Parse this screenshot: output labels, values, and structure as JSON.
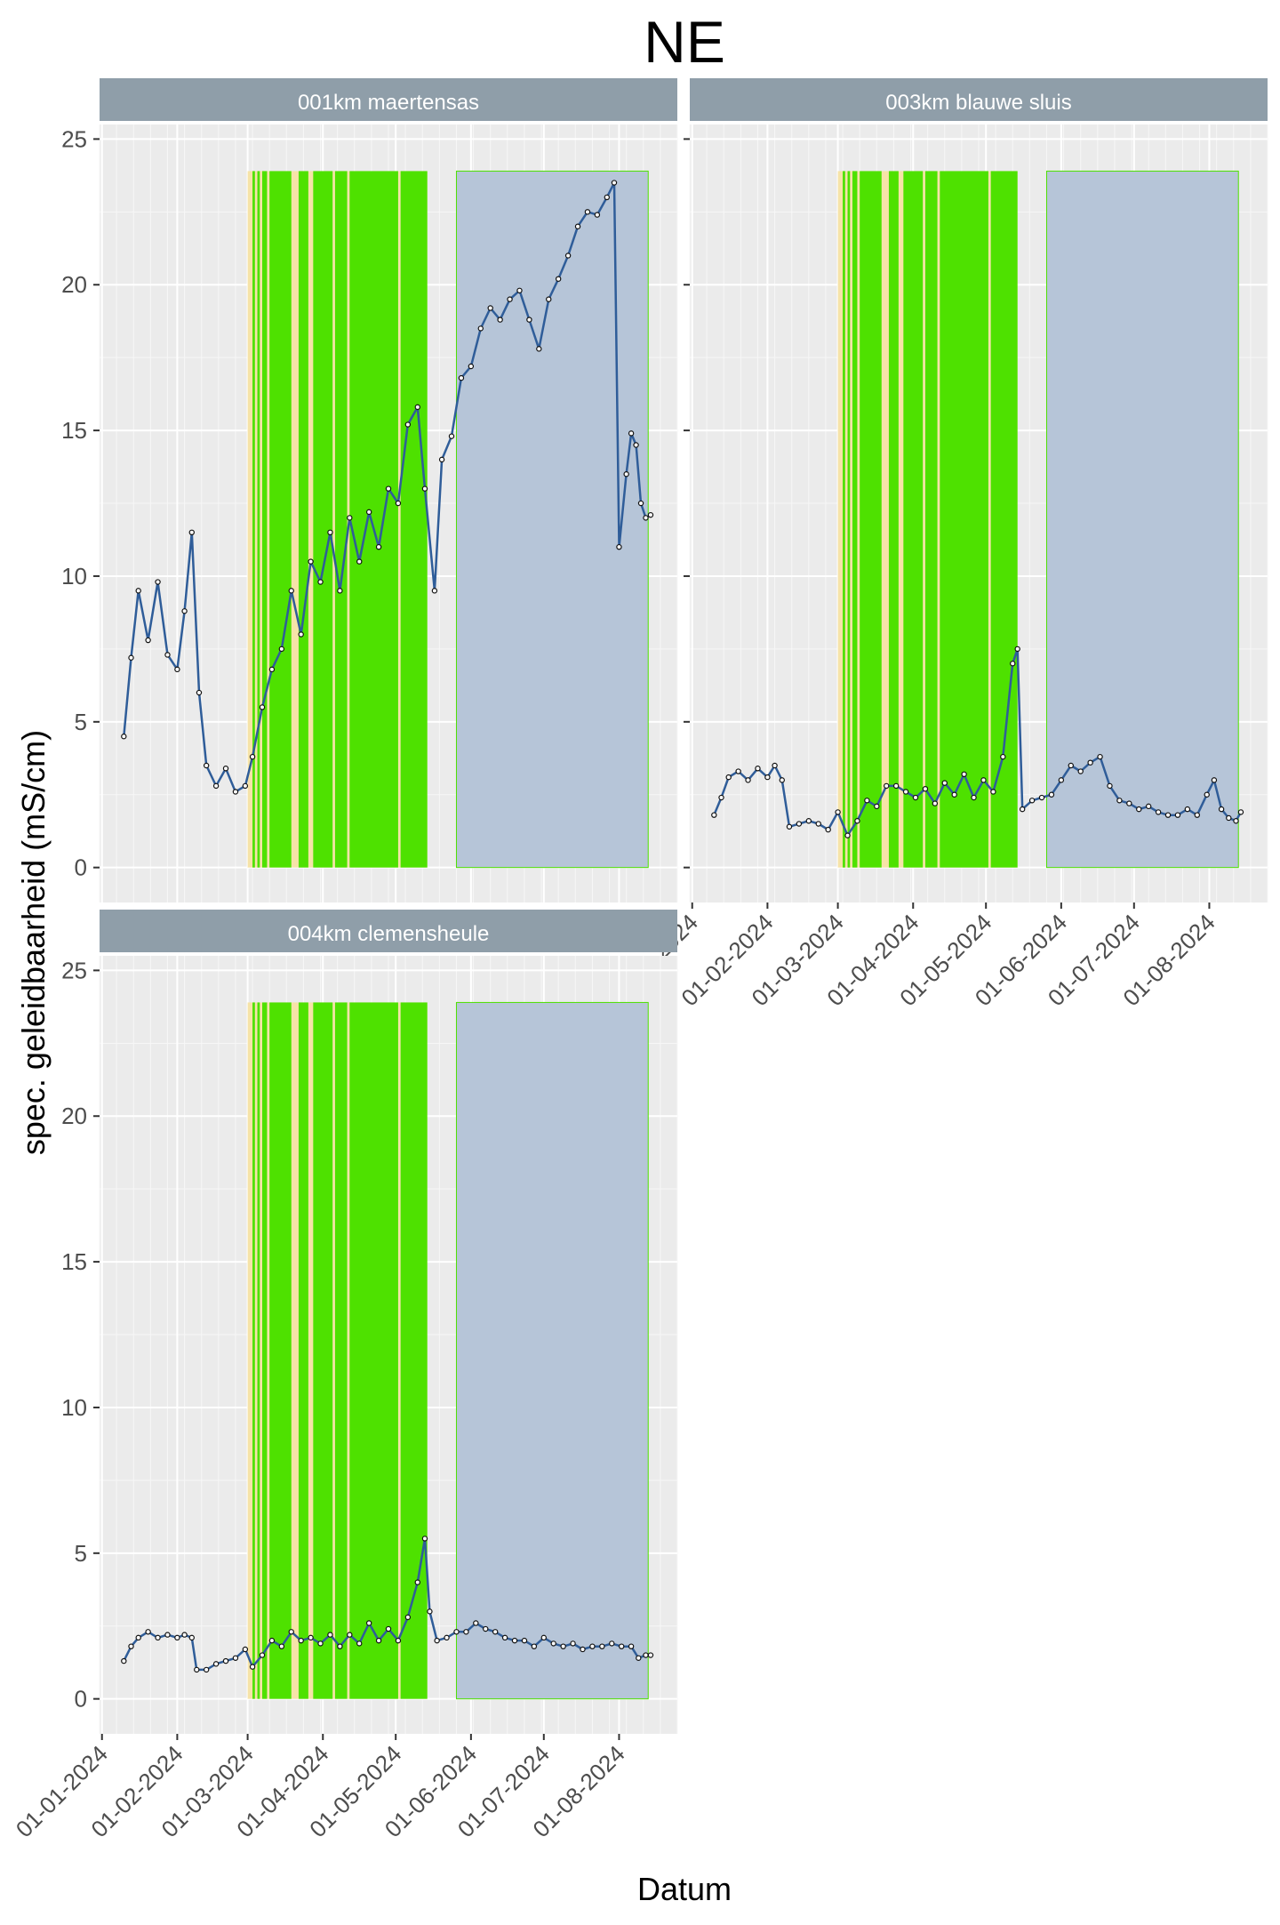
{
  "chart_data": {
    "type": "line",
    "title": "NE",
    "xlabel": "Datum",
    "ylabel": "spec. geleidbaarheid (mS/cm)",
    "ylim": [
      -1.2,
      25.5
    ],
    "yticks": [
      0,
      5,
      10,
      15,
      20,
      25
    ],
    "xlim": [
      "2023-12-31",
      "2024-08-25"
    ],
    "xticks": [
      "01-01-2024",
      "01-02-2024",
      "01-03-2024",
      "01-04-2024",
      "01-05-2024",
      "01-06-2024",
      "01-07-2024",
      "01-08-2024"
    ],
    "grid": true,
    "colors": {
      "line": "#2f5d99",
      "shaded_green": "#4ee100",
      "shaded_yellow": "#f6e3a8",
      "shaded_blue": "#b6c5d8",
      "strip": "#8f9ea9",
      "panel": "#ebebeb"
    },
    "shaded_periods": {
      "yellow_band": [
        "2024-03-01",
        "2024-05-14"
      ],
      "green_bands": [
        [
          "2024-03-03",
          "2024-03-04"
        ],
        [
          "2024-03-05",
          "2024-03-06"
        ],
        [
          "2024-03-07",
          "2024-03-09"
        ],
        [
          "2024-03-10",
          "2024-03-19"
        ],
        [
          "2024-03-22",
          "2024-03-26"
        ],
        [
          "2024-03-28",
          "2024-04-05"
        ],
        [
          "2024-04-06",
          "2024-04-11"
        ],
        [
          "2024-04-12",
          "2024-05-02"
        ],
        [
          "2024-05-03",
          "2024-05-14"
        ]
      ],
      "blue_band": [
        "2024-05-26",
        "2024-08-13"
      ],
      "top": 23.9
    },
    "panels": [
      {
        "name": "001km maertensas",
        "series": [
          {
            "x": "2024-01-10",
            "y": 4.5
          },
          {
            "x": "2024-01-13",
            "y": 7.2
          },
          {
            "x": "2024-01-16",
            "y": 9.5
          },
          {
            "x": "2024-01-20",
            "y": 7.8
          },
          {
            "x": "2024-01-24",
            "y": 9.8
          },
          {
            "x": "2024-01-28",
            "y": 7.3
          },
          {
            "x": "2024-02-01",
            "y": 6.8
          },
          {
            "x": "2024-02-04",
            "y": 8.8
          },
          {
            "x": "2024-02-07",
            "y": 11.5
          },
          {
            "x": "2024-02-10",
            "y": 6.0
          },
          {
            "x": "2024-02-13",
            "y": 3.5
          },
          {
            "x": "2024-02-17",
            "y": 2.8
          },
          {
            "x": "2024-02-21",
            "y": 3.4
          },
          {
            "x": "2024-02-25",
            "y": 2.6
          },
          {
            "x": "2024-02-29",
            "y": 2.8
          },
          {
            "x": "2024-03-03",
            "y": 3.8
          },
          {
            "x": "2024-03-07",
            "y": 5.5
          },
          {
            "x": "2024-03-11",
            "y": 6.8
          },
          {
            "x": "2024-03-15",
            "y": 7.5
          },
          {
            "x": "2024-03-19",
            "y": 9.5
          },
          {
            "x": "2024-03-23",
            "y": 8.0
          },
          {
            "x": "2024-03-27",
            "y": 10.5
          },
          {
            "x": "2024-03-31",
            "y": 9.8
          },
          {
            "x": "2024-04-04",
            "y": 11.5
          },
          {
            "x": "2024-04-08",
            "y": 9.5
          },
          {
            "x": "2024-04-12",
            "y": 12.0
          },
          {
            "x": "2024-04-16",
            "y": 10.5
          },
          {
            "x": "2024-04-20",
            "y": 12.2
          },
          {
            "x": "2024-04-24",
            "y": 11.0
          },
          {
            "x": "2024-04-28",
            "y": 13.0
          },
          {
            "x": "2024-05-02",
            "y": 12.5
          },
          {
            "x": "2024-05-06",
            "y": 15.2
          },
          {
            "x": "2024-05-10",
            "y": 15.8
          },
          {
            "x": "2024-05-13",
            "y": 13.0
          },
          {
            "x": "2024-05-17",
            "y": 9.5
          },
          {
            "x": "2024-05-20",
            "y": 14.0
          },
          {
            "x": "2024-05-24",
            "y": 14.8
          },
          {
            "x": "2024-05-28",
            "y": 16.8
          },
          {
            "x": "2024-06-01",
            "y": 17.2
          },
          {
            "x": "2024-06-05",
            "y": 18.5
          },
          {
            "x": "2024-06-09",
            "y": 19.2
          },
          {
            "x": "2024-06-13",
            "y": 18.8
          },
          {
            "x": "2024-06-17",
            "y": 19.5
          },
          {
            "x": "2024-06-21",
            "y": 19.8
          },
          {
            "x": "2024-06-25",
            "y": 18.8
          },
          {
            "x": "2024-06-29",
            "y": 17.8
          },
          {
            "x": "2024-07-03",
            "y": 19.5
          },
          {
            "x": "2024-07-07",
            "y": 20.2
          },
          {
            "x": "2024-07-11",
            "y": 21.0
          },
          {
            "x": "2024-07-15",
            "y": 22.0
          },
          {
            "x": "2024-07-19",
            "y": 22.5
          },
          {
            "x": "2024-07-23",
            "y": 22.4
          },
          {
            "x": "2024-07-27",
            "y": 23.0
          },
          {
            "x": "2024-07-30",
            "y": 23.5
          },
          {
            "x": "2024-08-01",
            "y": 11.0
          },
          {
            "x": "2024-08-04",
            "y": 13.5
          },
          {
            "x": "2024-08-06",
            "y": 14.9
          },
          {
            "x": "2024-08-08",
            "y": 14.5
          },
          {
            "x": "2024-08-10",
            "y": 12.5
          },
          {
            "x": "2024-08-12",
            "y": 12.0
          },
          {
            "x": "2024-08-14",
            "y": 12.1
          }
        ]
      },
      {
        "name": "003km blauwe sluis",
        "series": [
          {
            "x": "2024-01-10",
            "y": 1.8
          },
          {
            "x": "2024-01-13",
            "y": 2.4
          },
          {
            "x": "2024-01-16",
            "y": 3.1
          },
          {
            "x": "2024-01-20",
            "y": 3.3
          },
          {
            "x": "2024-01-24",
            "y": 3.0
          },
          {
            "x": "2024-01-28",
            "y": 3.4
          },
          {
            "x": "2024-02-01",
            "y": 3.1
          },
          {
            "x": "2024-02-04",
            "y": 3.5
          },
          {
            "x": "2024-02-07",
            "y": 3.0
          },
          {
            "x": "2024-02-10",
            "y": 1.4
          },
          {
            "x": "2024-02-14",
            "y": 1.5
          },
          {
            "x": "2024-02-18",
            "y": 1.6
          },
          {
            "x": "2024-02-22",
            "y": 1.5
          },
          {
            "x": "2024-02-26",
            "y": 1.3
          },
          {
            "x": "2024-03-01",
            "y": 1.9
          },
          {
            "x": "2024-03-05",
            "y": 1.1
          },
          {
            "x": "2024-03-09",
            "y": 1.6
          },
          {
            "x": "2024-03-13",
            "y": 2.3
          },
          {
            "x": "2024-03-17",
            "y": 2.1
          },
          {
            "x": "2024-03-21",
            "y": 2.8
          },
          {
            "x": "2024-03-25",
            "y": 2.8
          },
          {
            "x": "2024-03-29",
            "y": 2.6
          },
          {
            "x": "2024-04-02",
            "y": 2.4
          },
          {
            "x": "2024-04-06",
            "y": 2.7
          },
          {
            "x": "2024-04-10",
            "y": 2.2
          },
          {
            "x": "2024-04-14",
            "y": 2.9
          },
          {
            "x": "2024-04-18",
            "y": 2.5
          },
          {
            "x": "2024-04-22",
            "y": 3.2
          },
          {
            "x": "2024-04-26",
            "y": 2.4
          },
          {
            "x": "2024-04-30",
            "y": 3.0
          },
          {
            "x": "2024-05-04",
            "y": 2.6
          },
          {
            "x": "2024-05-08",
            "y": 3.8
          },
          {
            "x": "2024-05-12",
            "y": 7.0
          },
          {
            "x": "2024-05-14",
            "y": 7.5
          },
          {
            "x": "2024-05-16",
            "y": 2.0
          },
          {
            "x": "2024-05-20",
            "y": 2.3
          },
          {
            "x": "2024-05-24",
            "y": 2.4
          },
          {
            "x": "2024-05-28",
            "y": 2.5
          },
          {
            "x": "2024-06-01",
            "y": 3.0
          },
          {
            "x": "2024-06-05",
            "y": 3.5
          },
          {
            "x": "2024-06-09",
            "y": 3.3
          },
          {
            "x": "2024-06-13",
            "y": 3.6
          },
          {
            "x": "2024-06-17",
            "y": 3.8
          },
          {
            "x": "2024-06-21",
            "y": 2.8
          },
          {
            "x": "2024-06-25",
            "y": 2.3
          },
          {
            "x": "2024-06-29",
            "y": 2.2
          },
          {
            "x": "2024-07-03",
            "y": 2.0
          },
          {
            "x": "2024-07-07",
            "y": 2.1
          },
          {
            "x": "2024-07-11",
            "y": 1.9
          },
          {
            "x": "2024-07-15",
            "y": 1.8
          },
          {
            "x": "2024-07-19",
            "y": 1.8
          },
          {
            "x": "2024-07-23",
            "y": 2.0
          },
          {
            "x": "2024-07-27",
            "y": 1.8
          },
          {
            "x": "2024-07-31",
            "y": 2.5
          },
          {
            "x": "2024-08-03",
            "y": 3.0
          },
          {
            "x": "2024-08-06",
            "y": 2.0
          },
          {
            "x": "2024-08-09",
            "y": 1.7
          },
          {
            "x": "2024-08-12",
            "y": 1.6
          },
          {
            "x": "2024-08-14",
            "y": 1.9
          }
        ]
      },
      {
        "name": "004km clemensheule",
        "series": [
          {
            "x": "2024-01-10",
            "y": 1.3
          },
          {
            "x": "2024-01-13",
            "y": 1.8
          },
          {
            "x": "2024-01-16",
            "y": 2.1
          },
          {
            "x": "2024-01-20",
            "y": 2.3
          },
          {
            "x": "2024-01-24",
            "y": 2.1
          },
          {
            "x": "2024-01-28",
            "y": 2.2
          },
          {
            "x": "2024-02-01",
            "y": 2.1
          },
          {
            "x": "2024-02-04",
            "y": 2.2
          },
          {
            "x": "2024-02-07",
            "y": 2.1
          },
          {
            "x": "2024-02-09",
            "y": 1.0
          },
          {
            "x": "2024-02-13",
            "y": 1.0
          },
          {
            "x": "2024-02-17",
            "y": 1.2
          },
          {
            "x": "2024-02-21",
            "y": 1.3
          },
          {
            "x": "2024-02-25",
            "y": 1.4
          },
          {
            "x": "2024-02-29",
            "y": 1.7
          },
          {
            "x": "2024-03-03",
            "y": 1.1
          },
          {
            "x": "2024-03-07",
            "y": 1.5
          },
          {
            "x": "2024-03-11",
            "y": 2.0
          },
          {
            "x": "2024-03-15",
            "y": 1.8
          },
          {
            "x": "2024-03-19",
            "y": 2.3
          },
          {
            "x": "2024-03-23",
            "y": 2.0
          },
          {
            "x": "2024-03-27",
            "y": 2.1
          },
          {
            "x": "2024-03-31",
            "y": 1.9
          },
          {
            "x": "2024-04-04",
            "y": 2.2
          },
          {
            "x": "2024-04-08",
            "y": 1.8
          },
          {
            "x": "2024-04-12",
            "y": 2.2
          },
          {
            "x": "2024-04-16",
            "y": 1.9
          },
          {
            "x": "2024-04-20",
            "y": 2.6
          },
          {
            "x": "2024-04-24",
            "y": 2.0
          },
          {
            "x": "2024-04-28",
            "y": 2.4
          },
          {
            "x": "2024-05-02",
            "y": 2.0
          },
          {
            "x": "2024-05-06",
            "y": 2.8
          },
          {
            "x": "2024-05-10",
            "y": 4.0
          },
          {
            "x": "2024-05-13",
            "y": 5.5
          },
          {
            "x": "2024-05-15",
            "y": 3.0
          },
          {
            "x": "2024-05-18",
            "y": 2.0
          },
          {
            "x": "2024-05-22",
            "y": 2.1
          },
          {
            "x": "2024-05-26",
            "y": 2.3
          },
          {
            "x": "2024-05-30",
            "y": 2.3
          },
          {
            "x": "2024-06-03",
            "y": 2.6
          },
          {
            "x": "2024-06-07",
            "y": 2.4
          },
          {
            "x": "2024-06-11",
            "y": 2.3
          },
          {
            "x": "2024-06-15",
            "y": 2.1
          },
          {
            "x": "2024-06-19",
            "y": 2.0
          },
          {
            "x": "2024-06-23",
            "y": 2.0
          },
          {
            "x": "2024-06-27",
            "y": 1.8
          },
          {
            "x": "2024-07-01",
            "y": 2.1
          },
          {
            "x": "2024-07-05",
            "y": 1.9
          },
          {
            "x": "2024-07-09",
            "y": 1.8
          },
          {
            "x": "2024-07-13",
            "y": 1.9
          },
          {
            "x": "2024-07-17",
            "y": 1.7
          },
          {
            "x": "2024-07-21",
            "y": 1.8
          },
          {
            "x": "2024-07-25",
            "y": 1.8
          },
          {
            "x": "2024-07-29",
            "y": 1.9
          },
          {
            "x": "2024-08-02",
            "y": 1.8
          },
          {
            "x": "2024-08-06",
            "y": 1.8
          },
          {
            "x": "2024-08-09",
            "y": 1.4
          },
          {
            "x": "2024-08-12",
            "y": 1.5
          },
          {
            "x": "2024-08-14",
            "y": 1.5
          }
        ]
      }
    ]
  }
}
